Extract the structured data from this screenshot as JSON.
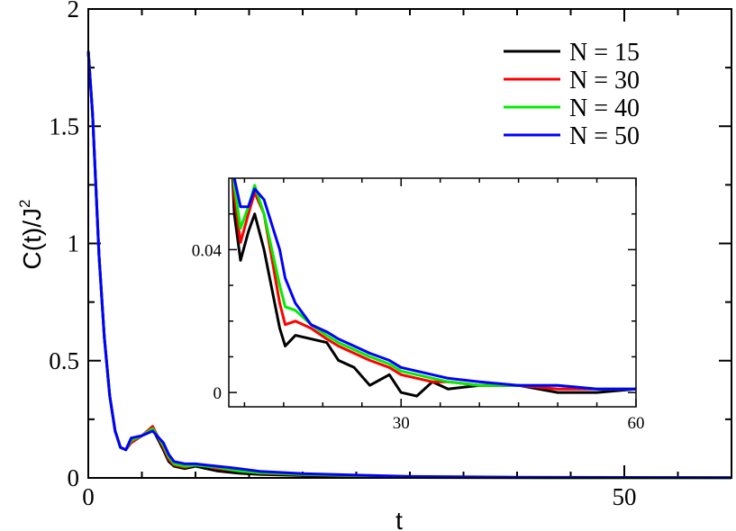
{
  "chart_data": [
    {
      "type": "line",
      "xlabel": "t",
      "ylabel": "C(t)/J",
      "ylabel_superscript": "2",
      "xlim": [
        0,
        60
      ],
      "ylim": [
        0,
        2
      ],
      "xticks": [
        0,
        50
      ],
      "yticks": [
        0,
        0.5,
        1,
        1.5,
        2
      ],
      "ytick_labels": [
        "0",
        "0.5",
        "1",
        "1.5",
        "2"
      ],
      "grid": false,
      "legend": "top-right",
      "series": [
        {
          "name": "N = 15",
          "color": "#000000",
          "x": [
            0,
            0.4,
            1,
            1.5,
            2,
            2.5,
            3,
            3.5,
            4,
            5,
            6,
            7,
            7.5,
            8,
            9,
            10,
            11,
            12,
            14,
            16,
            20,
            25,
            30,
            40,
            50,
            60
          ],
          "y": [
            1.82,
            1.55,
            0.95,
            0.6,
            0.35,
            0.2,
            0.13,
            0.12,
            0.15,
            0.18,
            0.21,
            0.12,
            0.07,
            0.05,
            0.04,
            0.05,
            0.04,
            0.03,
            0.02,
            0.015,
            0.01,
            0.006,
            0.002,
            0.001,
            0.0,
            0.0
          ]
        },
        {
          "name": "N = 30",
          "color": "#ff0000",
          "x": [
            0,
            0.4,
            1,
            1.5,
            2,
            2.5,
            3,
            3.5,
            4,
            5,
            6,
            7,
            7.5,
            8,
            9,
            10,
            11,
            12,
            14,
            16,
            20,
            25,
            30,
            40,
            50,
            60
          ],
          "y": [
            1.82,
            1.55,
            0.95,
            0.6,
            0.35,
            0.2,
            0.13,
            0.12,
            0.15,
            0.18,
            0.22,
            0.13,
            0.08,
            0.055,
            0.045,
            0.055,
            0.05,
            0.04,
            0.03,
            0.02,
            0.014,
            0.009,
            0.004,
            0.002,
            0.001,
            0.001
          ]
        },
        {
          "name": "N = 40",
          "color": "#00ee00",
          "x": [
            0,
            0.4,
            1,
            1.5,
            2,
            2.5,
            3,
            3.5,
            4,
            5,
            6,
            7,
            7.5,
            8,
            9,
            10,
            11,
            12,
            14,
            16,
            20,
            25,
            30,
            40,
            50,
            60
          ],
          "y": [
            1.82,
            1.55,
            0.95,
            0.6,
            0.35,
            0.2,
            0.13,
            0.12,
            0.16,
            0.18,
            0.21,
            0.14,
            0.09,
            0.06,
            0.05,
            0.055,
            0.05,
            0.045,
            0.03,
            0.022,
            0.015,
            0.01,
            0.005,
            0.002,
            0.001,
            0.001
          ]
        },
        {
          "name": "N = 50",
          "color": "#0000ff",
          "x": [
            0,
            0.4,
            1,
            1.5,
            2,
            2.5,
            3,
            3.5,
            4,
            5,
            6,
            7,
            7.5,
            8,
            9,
            10,
            11,
            12,
            14,
            16,
            20,
            25,
            30,
            40,
            50,
            60
          ],
          "y": [
            1.82,
            1.55,
            0.95,
            0.6,
            0.35,
            0.2,
            0.13,
            0.12,
            0.17,
            0.18,
            0.2,
            0.15,
            0.1,
            0.07,
            0.06,
            0.06,
            0.055,
            0.05,
            0.04,
            0.028,
            0.018,
            0.012,
            0.006,
            0.003,
            0.002,
            0.001
          ]
        }
      ]
    },
    {
      "type": "line",
      "inset": true,
      "xlim": [
        8,
        60
      ],
      "ylim": [
        -0.004,
        0.06
      ],
      "xticks": [
        30,
        60
      ],
      "yticks": [
        0,
        0.04
      ],
      "ytick_labels": [
        "0",
        "0.04"
      ],
      "grid": false,
      "series": [
        {
          "name": "N = 15",
          "color": "#000000",
          "x": [
            8,
            8.7,
            9.5,
            10.5,
            11.3,
            12.5,
            14.5,
            15.2,
            16.5,
            18.5,
            20.5,
            22,
            24,
            26,
            28.5,
            30,
            32,
            34,
            36,
            40,
            45,
            50,
            55,
            60
          ],
          "y": [
            0.083,
            0.05,
            0.037,
            0.045,
            0.05,
            0.04,
            0.018,
            0.013,
            0.016,
            0.015,
            0.014,
            0.009,
            0.007,
            0.002,
            0.005,
            0.0,
            -0.001,
            0.003,
            0.001,
            0.002,
            0.002,
            0.0,
            0.0,
            0.001
          ]
        },
        {
          "name": "N = 30",
          "color": "#ff0000",
          "x": [
            8,
            8.7,
            9.5,
            10.5,
            11.3,
            12.5,
            14.5,
            15.2,
            16.5,
            18.5,
            20.5,
            22,
            24,
            26,
            28.5,
            30,
            32,
            34,
            36,
            40,
            45,
            50,
            55,
            60
          ],
          "y": [
            0.083,
            0.055,
            0.042,
            0.05,
            0.056,
            0.05,
            0.025,
            0.019,
            0.02,
            0.018,
            0.015,
            0.013,
            0.011,
            0.009,
            0.007,
            0.005,
            0.004,
            0.003,
            0.003,
            0.002,
            0.002,
            0.001,
            0.001,
            0.001
          ]
        },
        {
          "name": "N = 40",
          "color": "#00ee00",
          "x": [
            8,
            8.7,
            9.5,
            10.5,
            11.3,
            12.5,
            14.5,
            15.2,
            16.5,
            18.5,
            20.5,
            22,
            24,
            26,
            28.5,
            30,
            32,
            34,
            36,
            40,
            45,
            50,
            55,
            60
          ],
          "y": [
            0.083,
            0.058,
            0.046,
            0.052,
            0.058,
            0.05,
            0.03,
            0.024,
            0.023,
            0.019,
            0.016,
            0.014,
            0.012,
            0.01,
            0.008,
            0.006,
            0.005,
            0.004,
            0.003,
            0.002,
            0.002,
            0.002,
            0.001,
            0.001
          ]
        },
        {
          "name": "N = 50",
          "color": "#0000ff",
          "x": [
            8,
            8.7,
            9.5,
            10.5,
            11.3,
            12.5,
            14.5,
            15.2,
            16.5,
            18.5,
            20.5,
            22,
            24,
            26,
            28.5,
            30,
            32,
            34,
            36,
            40,
            45,
            50,
            55,
            60
          ],
          "y": [
            0.083,
            0.06,
            0.052,
            0.052,
            0.057,
            0.054,
            0.04,
            0.032,
            0.025,
            0.019,
            0.017,
            0.015,
            0.013,
            0.011,
            0.009,
            0.007,
            0.006,
            0.005,
            0.004,
            0.003,
            0.002,
            0.002,
            0.001,
            0.001
          ]
        }
      ]
    }
  ]
}
